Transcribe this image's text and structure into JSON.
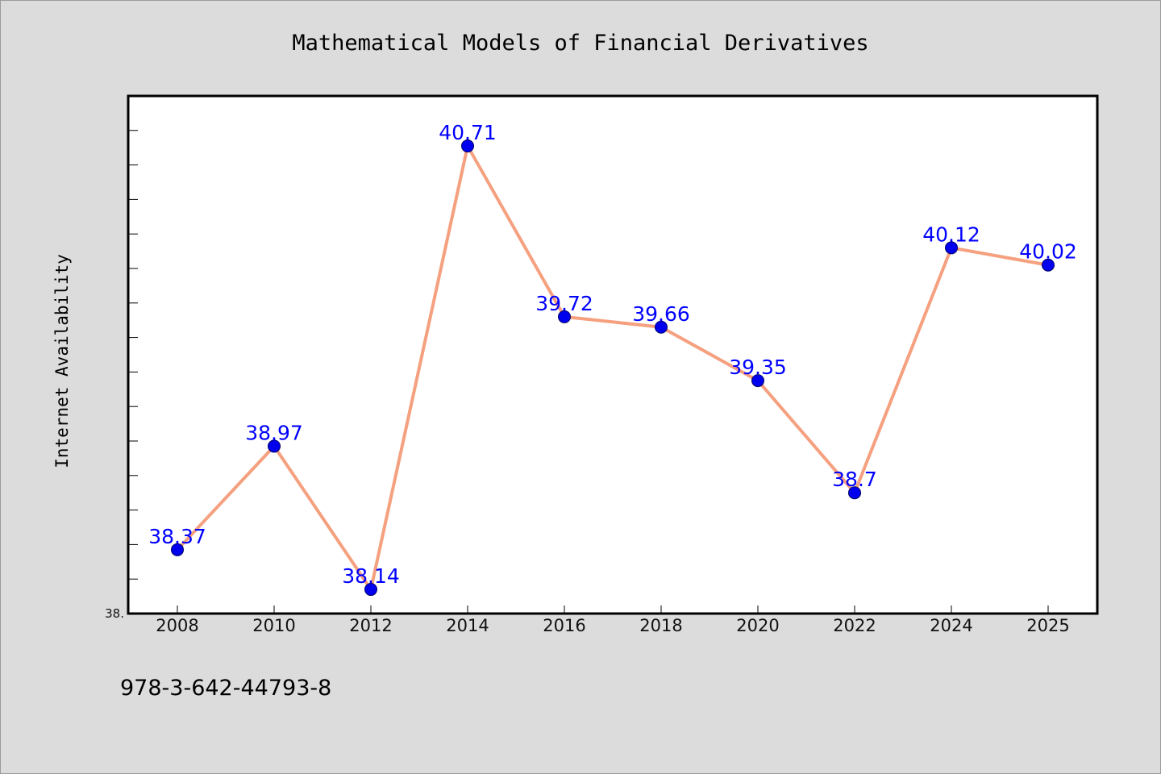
{
  "chart_data": {
    "type": "line",
    "title": "Mathematical Models of Financial Derivatives",
    "xlabel": "",
    "ylabel": "Internet Availability",
    "categories": [
      "2008",
      "2010",
      "2012",
      "2014",
      "2016",
      "2018",
      "2020",
      "2022",
      "2024",
      "2025"
    ],
    "series": [
      {
        "values": [
          38.37,
          38.97,
          38.14,
          40.71,
          39.72,
          39.66,
          39.35,
          38.7,
          40.12,
          40.02
        ],
        "data_labels": [
          "38.37",
          "38.97",
          "38.14",
          "40.71",
          "39.72",
          "39.66",
          "39.35",
          "38.7",
          "40.12",
          "40.02"
        ],
        "line_color": "#f5a07f",
        "marker_color": "#0000ee",
        "label_color": "#0000ff"
      }
    ],
    "y_tick_labels": [
      "38."
    ],
    "ylim": [
      38.0,
      41.0
    ],
    "grid": false,
    "legend": "none"
  },
  "footer": {
    "isbn": "978-3-642-44793-8"
  },
  "colors": {
    "background": "#dcdcdc",
    "plot_background": "#ffffff",
    "axis": "#000000"
  }
}
